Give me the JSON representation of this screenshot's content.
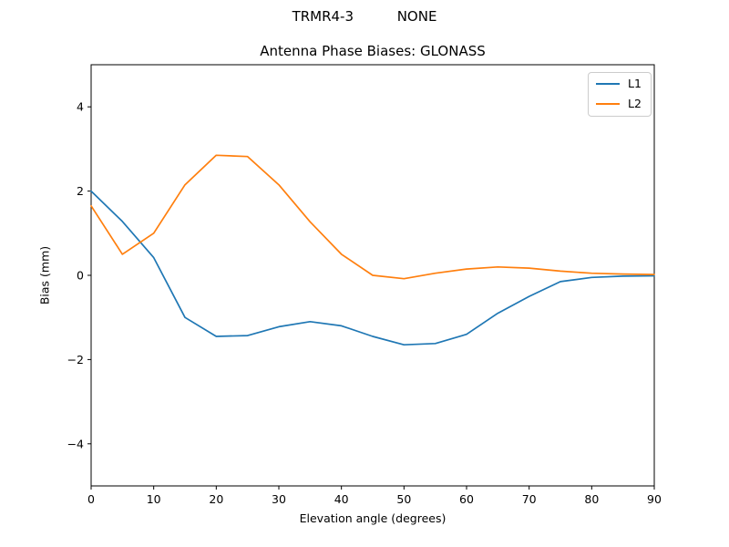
{
  "figure": {
    "suptitle": "TRMR4-3          NONE",
    "background_color": "#ffffff",
    "text_color": "#000000"
  },
  "chart_data": {
    "type": "line",
    "title": "Antenna Phase Biases: GLONASS",
    "xlabel": "Elevation angle (degrees)",
    "ylabel": "Bias (mm)",
    "xlim": [
      0,
      90
    ],
    "ylim": [
      -5,
      5
    ],
    "grid": false,
    "legend_position": "upper right",
    "x": [
      0,
      5,
      10,
      15,
      20,
      25,
      30,
      35,
      40,
      45,
      50,
      55,
      60,
      65,
      70,
      75,
      80,
      85,
      90
    ],
    "series": [
      {
        "name": "L1",
        "color": "#1f77b4",
        "values": [
          2.0,
          1.28,
          0.42,
          -1.0,
          -1.45,
          -1.43,
          -1.22,
          -1.1,
          -1.2,
          -1.45,
          -1.65,
          -1.62,
          -1.4,
          -0.9,
          -0.5,
          -0.15,
          -0.05,
          -0.02,
          -0.01
        ]
      },
      {
        "name": "L2",
        "color": "#ff7f0e",
        "values": [
          1.65,
          0.5,
          1.0,
          2.15,
          2.85,
          2.82,
          2.15,
          1.27,
          0.5,
          0.0,
          -0.08,
          0.05,
          0.15,
          0.2,
          0.17,
          0.1,
          0.05,
          0.03,
          0.02
        ]
      }
    ],
    "xticks": {
      "values": [
        0,
        10,
        20,
        30,
        40,
        50,
        60,
        70,
        80,
        90
      ],
      "labels": [
        "0",
        "10",
        "20",
        "30",
        "40",
        "50",
        "60",
        "70",
        "80",
        "90"
      ]
    },
    "yticks": {
      "values": [
        -4,
        -2,
        0,
        2,
        4
      ],
      "labels": [
        "−4",
        "−2",
        "0",
        "2",
        "4"
      ]
    }
  },
  "legend": {
    "entries": [
      {
        "label": "L1",
        "color": "#1f77b4"
      },
      {
        "label": "L2",
        "color": "#ff7f0e"
      }
    ]
  }
}
